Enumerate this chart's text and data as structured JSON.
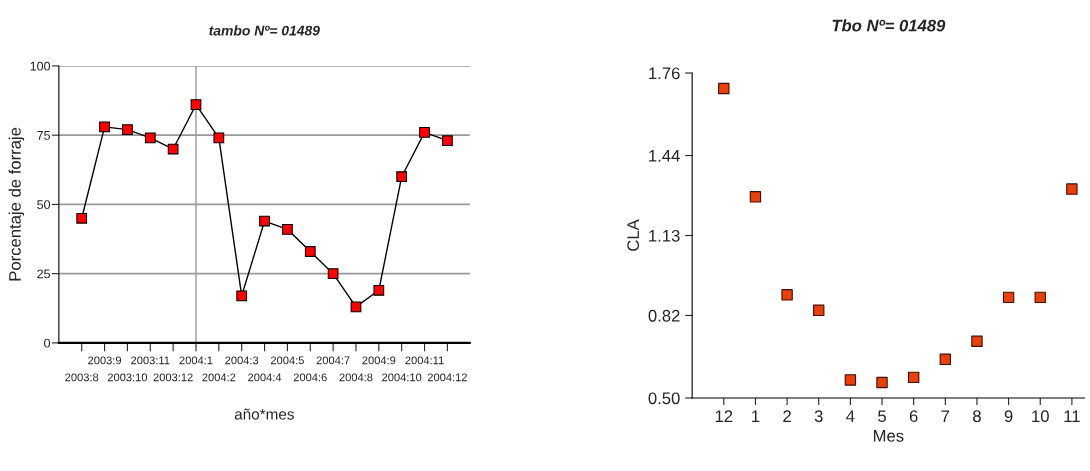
{
  "chart_data": [
    {
      "type": "line",
      "title": "tambo Nº= 01489",
      "xlabel": "año*mes",
      "ylabel": "Porcentaje de forraje",
      "categories": [
        "2003:8",
        "2003:9",
        "2003:10",
        "2003:11",
        "2003:12",
        "2004:1",
        "2004:2",
        "2004:3",
        "2004:4",
        "2004:5",
        "2004:6",
        "2004:7",
        "2004:8",
        "2004:9",
        "2004:10",
        "2004:11",
        "2004:12"
      ],
      "series": [
        {
          "color": "#ff0000",
          "values": [
            45,
            78,
            77,
            74,
            70,
            86,
            74,
            17,
            44,
            41,
            33,
            25,
            13,
            19,
            60,
            76,
            73
          ]
        }
      ],
      "ylim": [
        0,
        100
      ],
      "yticks": [
        0,
        25,
        50,
        75,
        100
      ],
      "grid": "y",
      "marker": "square",
      "line_style": "solid",
      "ref_lines": [
        {
          "axis": "x",
          "value": "2004:1",
          "color": "#999999"
        }
      ]
    },
    {
      "type": "scatter",
      "title": "Tbo Nº= 01489",
      "xlabel": "Mes",
      "ylabel": "CLA",
      "categories": [
        "12",
        "1",
        "2",
        "3",
        "4",
        "5",
        "6",
        "7",
        "8",
        "9",
        "10",
        "11"
      ],
      "series": [
        {
          "color": "#e8400c",
          "values": [
            1.7,
            1.28,
            0.9,
            0.84,
            0.57,
            0.56,
            0.58,
            0.65,
            0.72,
            0.89,
            0.89,
            1.31
          ]
        }
      ],
      "ylim": [
        0.5,
        1.76
      ],
      "yticks": [
        {
          "value": 0.5,
          "label": "0.50"
        },
        {
          "value": 0.82,
          "label": "0.82"
        },
        {
          "value": 1.13,
          "label": "1.13"
        },
        {
          "value": 1.44,
          "label": "1.44"
        },
        {
          "value": 1.76,
          "label": "1.76"
        }
      ],
      "marker": "square"
    }
  ]
}
